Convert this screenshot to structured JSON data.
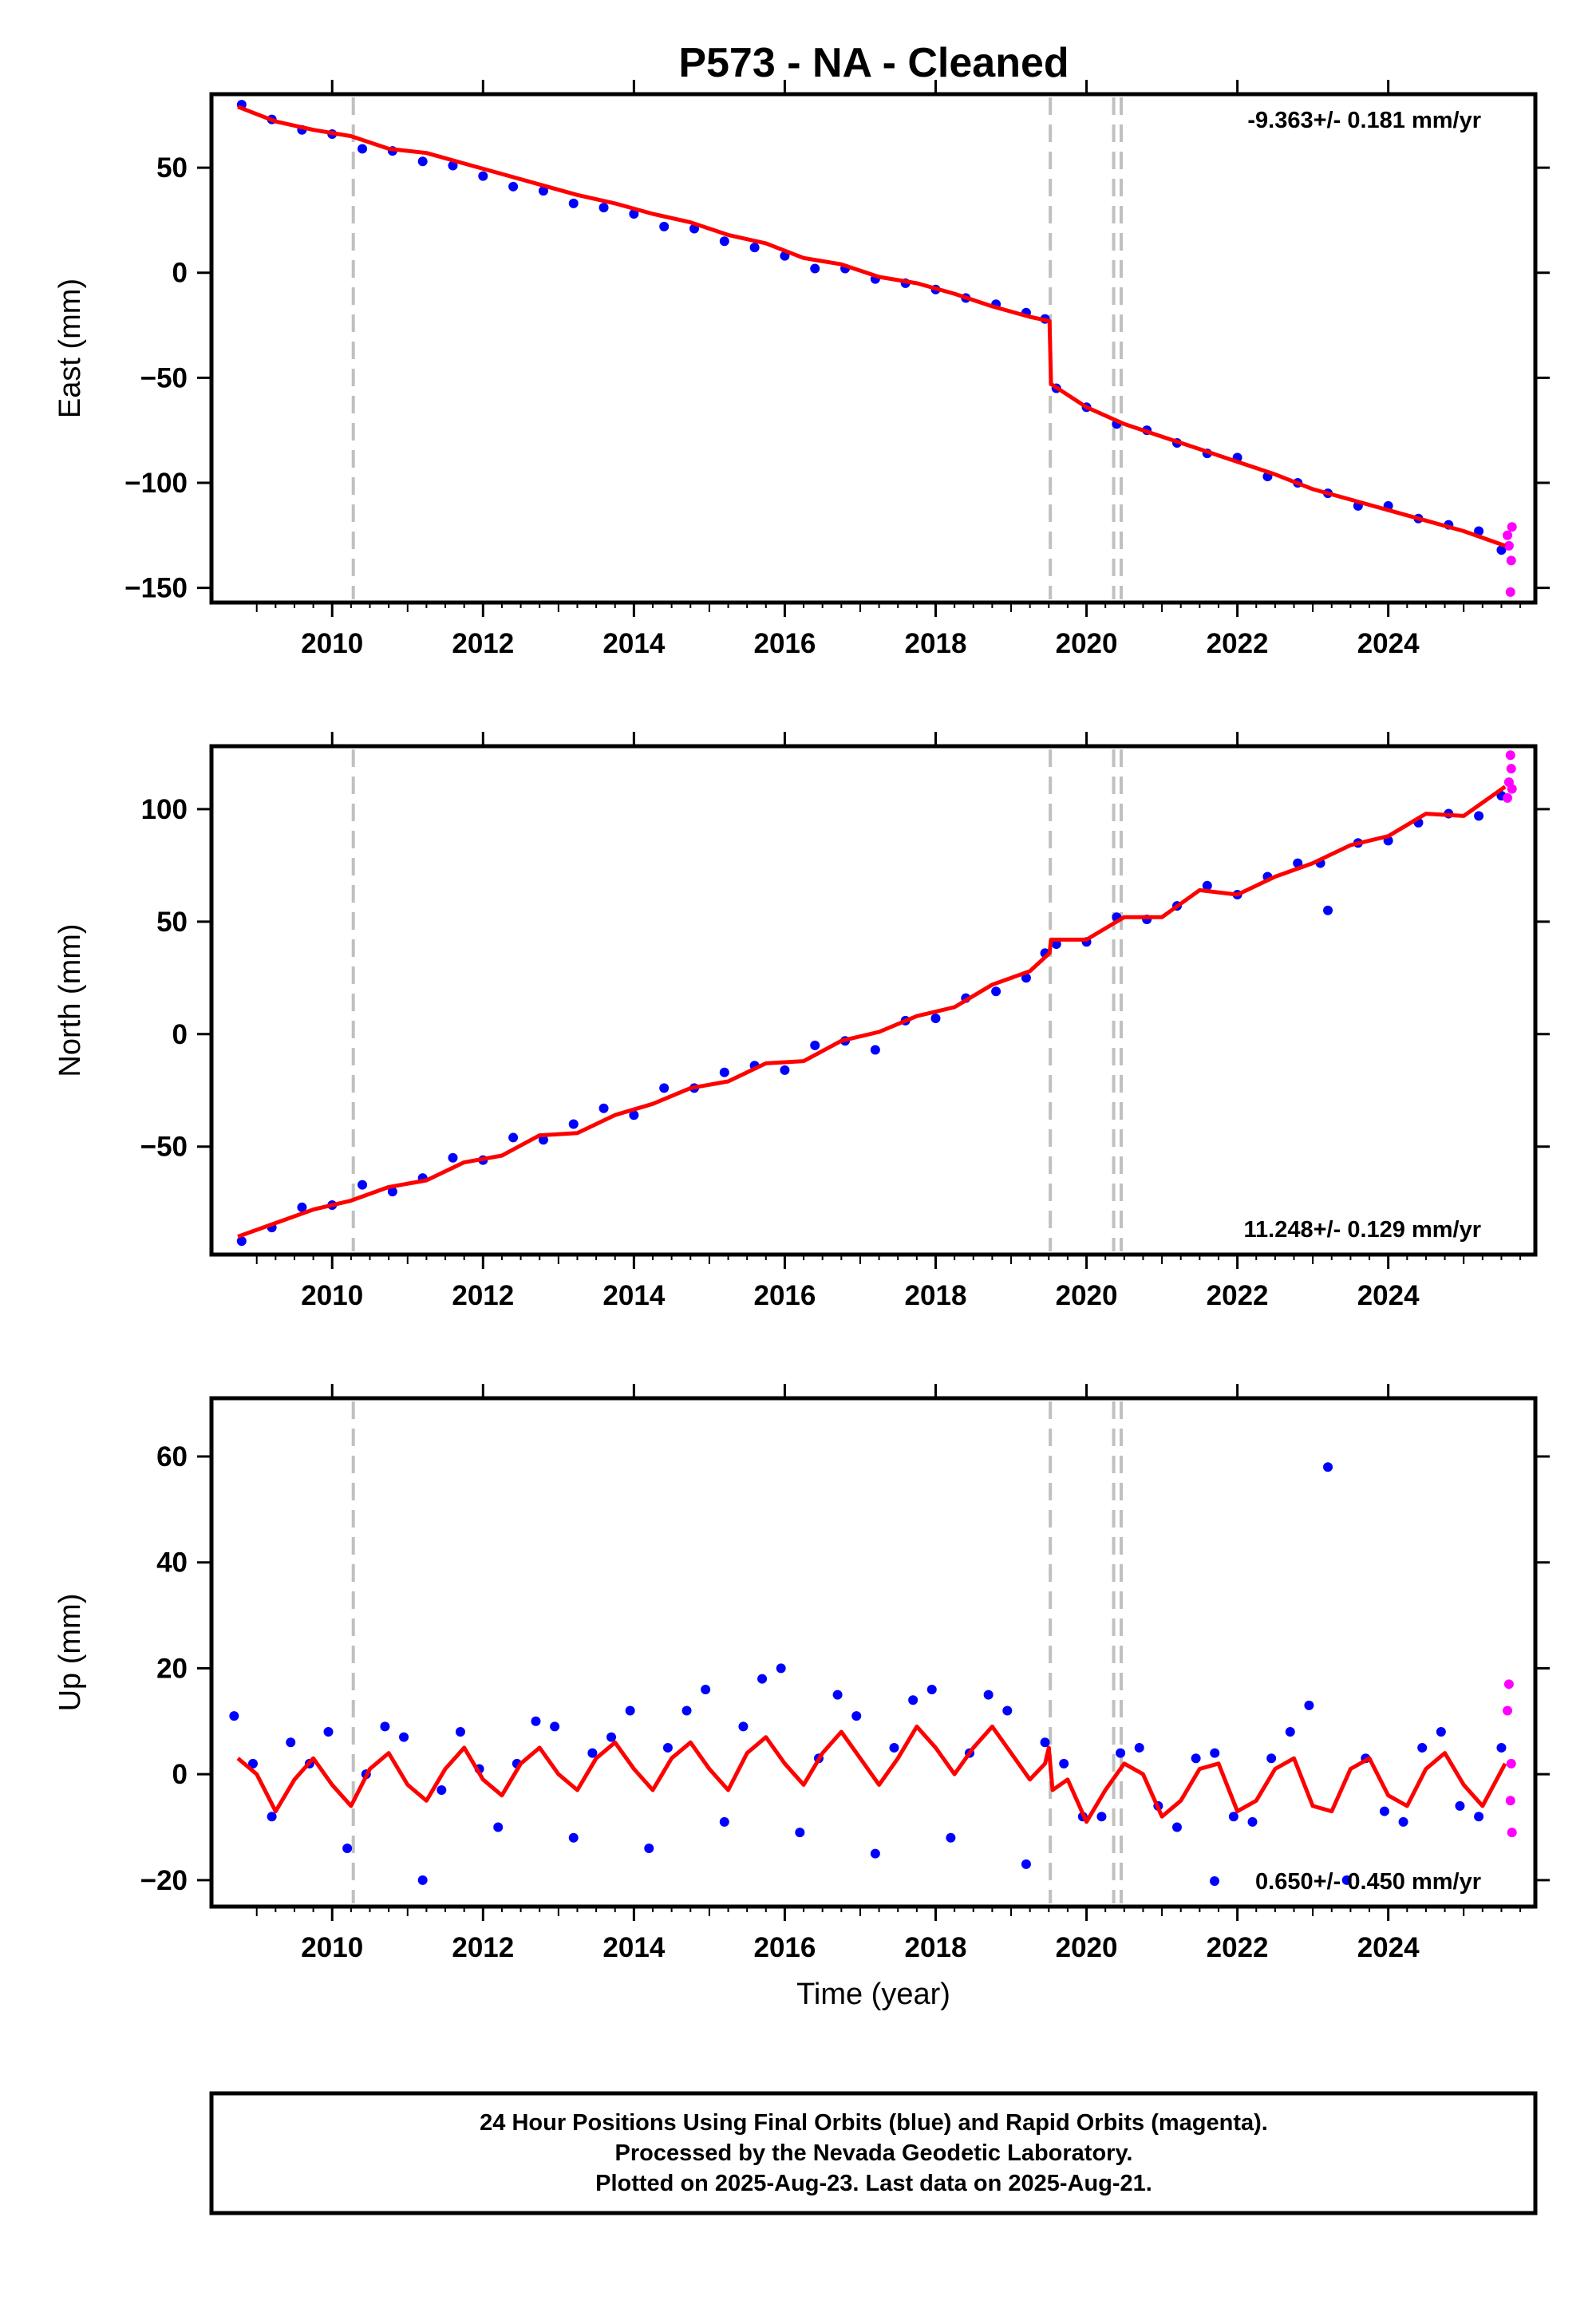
{
  "title": "P573  - NA - Cleaned",
  "colors": {
    "final_orbits": "#0000ff",
    "rapid_orbits": "#ff00ff",
    "model": "#ff0000",
    "event_lines": "#c0c0c0",
    "frame": "#000000"
  },
  "footer": {
    "line1": "24 Hour Positions Using Final Orbits (blue) and Rapid Orbits (magenta).",
    "line2": "Processed by the Nevada Geodetic Laboratory.",
    "line3": "Plotted on 2025-Aug-23. Last data on 2025-Aug-21."
  },
  "chart_data": [
    {
      "type": "scatter",
      "component": "east",
      "ylabel": "East (mm)",
      "xlabel": "",
      "xlim": [
        2008.4,
        2025.95
      ],
      "ylim": [
        -157,
        85
      ],
      "yticks": [
        50,
        0,
        -50,
        -100,
        -150
      ],
      "yticklabels": [
        "50",
        "0",
        "−50",
        "−100",
        "−150"
      ],
      "xticks": [
        2010,
        2012,
        2014,
        2016,
        2018,
        2020,
        2022,
        2024
      ],
      "xticklabels": [
        "2010",
        "2012",
        "2014",
        "2016",
        "2018",
        "2020",
        "2022",
        "2024"
      ],
      "rate_label": "-9.363+/- 0.181 mm/yr",
      "rate_position": "top-right",
      "event_lines_x": [
        2010.28,
        2019.52,
        2020.36,
        2020.46
      ],
      "model_line_x": [
        2008.75,
        2009.25,
        2009.75,
        2010.25,
        2010.75,
        2011.25,
        2011.75,
        2012.25,
        2012.75,
        2013.25,
        2013.75,
        2014.25,
        2014.75,
        2015.25,
        2015.75,
        2016.25,
        2016.75,
        2017.25,
        2017.75,
        2018.25,
        2018.75,
        2019.25,
        2019.51,
        2019.53,
        2020.0,
        2020.5,
        2021.0,
        2021.5,
        2022.0,
        2022.5,
        2023.0,
        2023.5,
        2024.0,
        2024.5,
        2025.0,
        2025.55
      ],
      "model_line_y": [
        79,
        72,
        68,
        65,
        59,
        57,
        52,
        47,
        42,
        37,
        33,
        28,
        24,
        18,
        14,
        7,
        4,
        -2,
        -5,
        -10,
        -16,
        -21,
        -23,
        -53,
        -64,
        -72,
        -78,
        -84,
        -90,
        -96,
        -103,
        -108,
        -113,
        -118,
        -123,
        -130
      ],
      "final_points_x": [
        2008.8,
        2009.2,
        2009.6,
        2010.0,
        2010.4,
        2010.8,
        2011.2,
        2011.6,
        2012.0,
        2012.4,
        2012.8,
        2013.2,
        2013.6,
        2014.0,
        2014.4,
        2014.8,
        2015.2,
        2015.6,
        2016.0,
        2016.4,
        2016.8,
        2017.2,
        2017.6,
        2018.0,
        2018.4,
        2018.8,
        2019.2,
        2019.45,
        2019.6,
        2020.0,
        2020.4,
        2020.8,
        2021.2,
        2021.6,
        2022.0,
        2022.4,
        2022.8,
        2023.2,
        2023.6,
        2024.0,
        2024.4,
        2024.8,
        2025.2,
        2025.5
      ],
      "final_points_y": [
        80,
        73,
        68,
        66,
        59,
        58,
        53,
        51,
        46,
        41,
        39,
        33,
        31,
        28,
        22,
        21,
        15,
        12,
        8,
        2,
        2,
        -3,
        -5,
        -8,
        -12,
        -15,
        -19,
        -22,
        -55,
        -64,
        -72,
        -75,
        -81,
        -86,
        -88,
        -97,
        -100,
        -105,
        -111,
        -111,
        -117,
        -120,
        -123,
        -132
      ],
      "rapid_points_x": [
        2025.58,
        2025.6,
        2025.62,
        2025.63,
        2025.64
      ],
      "rapid_points_y": [
        -125,
        -130,
        -152,
        -137,
        -121
      ]
    },
    {
      "type": "scatter",
      "component": "north",
      "ylabel": "North (mm)",
      "xlabel": "",
      "xlim": [
        2008.4,
        2025.95
      ],
      "ylim": [
        -98,
        128
      ],
      "yticks": [
        100,
        50,
        0,
        -50
      ],
      "yticklabels": [
        "100",
        "50",
        "0",
        "−50"
      ],
      "xticks": [
        2010,
        2012,
        2014,
        2016,
        2018,
        2020,
        2022,
        2024
      ],
      "xticklabels": [
        "2010",
        "2012",
        "2014",
        "2016",
        "2018",
        "2020",
        "2022",
        "2024"
      ],
      "rate_label": "11.248+/- 0.129 mm/yr",
      "rate_position": "bottom-right",
      "event_lines_x": [
        2010.28,
        2019.52,
        2020.36,
        2020.46
      ],
      "model_line_x": [
        2008.75,
        2009.25,
        2009.75,
        2010.25,
        2010.75,
        2011.25,
        2011.75,
        2012.25,
        2012.75,
        2013.25,
        2013.75,
        2014.25,
        2014.75,
        2015.25,
        2015.75,
        2016.25,
        2016.75,
        2017.25,
        2017.75,
        2018.25,
        2018.75,
        2019.25,
        2019.51,
        2019.53,
        2020.0,
        2020.5,
        2021.0,
        2021.5,
        2022.0,
        2022.5,
        2023.0,
        2023.5,
        2024.0,
        2024.5,
        2025.0,
        2025.55
      ],
      "model_line_y": [
        -90,
        -84,
        -78,
        -74,
        -68,
        -65,
        -57,
        -54,
        -45,
        -44,
        -36,
        -31,
        -24,
        -21,
        -13,
        -12,
        -3,
        1,
        8,
        12,
        22,
        28,
        36,
        42,
        42,
        52,
        52,
        64,
        62,
        70,
        76,
        84,
        88,
        98,
        97,
        110
      ],
      "final_points_x": [
        2008.8,
        2009.2,
        2009.6,
        2010.0,
        2010.4,
        2010.8,
        2011.2,
        2011.6,
        2012.0,
        2012.4,
        2012.8,
        2013.2,
        2013.6,
        2014.0,
        2014.4,
        2014.8,
        2015.2,
        2015.6,
        2016.0,
        2016.4,
        2016.8,
        2017.2,
        2017.6,
        2018.0,
        2018.4,
        2018.8,
        2019.2,
        2019.45,
        2019.6,
        2020.0,
        2020.4,
        2020.8,
        2021.2,
        2021.6,
        2022.0,
        2022.4,
        2022.8,
        2023.1,
        2023.2,
        2023.6,
        2024.0,
        2024.4,
        2024.8,
        2025.2,
        2025.5
      ],
      "final_points_y": [
        -92,
        -86,
        -77,
        -76,
        -67,
        -70,
        -64,
        -55,
        -56,
        -46,
        -47,
        -40,
        -33,
        -36,
        -24,
        -24,
        -17,
        -14,
        -16,
        -5,
        -3,
        -7,
        6,
        7,
        16,
        19,
        25,
        36,
        40,
        41,
        52,
        51,
        57,
        66,
        62,
        70,
        76,
        76,
        55,
        85,
        86,
        94,
        98,
        97,
        106
      ],
      "rapid_points_x": [
        2025.58,
        2025.6,
        2025.62,
        2025.63,
        2025.64
      ],
      "rapid_points_y": [
        105,
        112,
        124,
        118,
        109
      ]
    },
    {
      "type": "scatter",
      "component": "up",
      "ylabel": "Up (mm)",
      "xlabel": "Time (year)",
      "xlim": [
        2008.4,
        2025.95
      ],
      "ylim": [
        -25,
        71
      ],
      "yticks": [
        60,
        40,
        20,
        0,
        -20
      ],
      "yticklabels": [
        "60",
        "40",
        "20",
        "0",
        "−20"
      ],
      "xticks": [
        2010,
        2012,
        2014,
        2016,
        2018,
        2020,
        2022,
        2024
      ],
      "xticklabels": [
        "2010",
        "2012",
        "2014",
        "2016",
        "2018",
        "2020",
        "2022",
        "2024"
      ],
      "rate_label": "0.650+/- 0.450 mm/yr",
      "rate_position": "bottom-right",
      "event_lines_x": [
        2010.28,
        2019.52,
        2020.36,
        2020.46
      ],
      "model_line_x": [
        2008.75,
        2009.0,
        2009.25,
        2009.5,
        2009.75,
        2010.0,
        2010.25,
        2010.5,
        2010.75,
        2011.0,
        2011.25,
        2011.5,
        2011.75,
        2012.0,
        2012.25,
        2012.5,
        2012.75,
        2013.0,
        2013.25,
        2013.5,
        2013.75,
        2014.0,
        2014.25,
        2014.5,
        2014.75,
        2015.0,
        2015.25,
        2015.5,
        2015.75,
        2016.0,
        2016.25,
        2016.5,
        2016.75,
        2017.0,
        2017.25,
        2017.5,
        2017.75,
        2018.0,
        2018.25,
        2018.5,
        2018.75,
        2019.0,
        2019.25,
        2019.45,
        2019.5,
        2019.55,
        2019.75,
        2020.0,
        2020.25,
        2020.5,
        2020.75,
        2021.0,
        2021.25,
        2021.5,
        2021.75,
        2022.0,
        2022.25,
        2022.5,
        2022.75,
        2023.0,
        2023.25,
        2023.5,
        2023.75,
        2024.0,
        2024.25,
        2024.5,
        2024.75,
        2025.0,
        2025.25,
        2025.55
      ],
      "model_line_y": [
        3,
        0,
        -7,
        -1,
        3,
        -2,
        -6,
        1,
        4,
        -2,
        -5,
        1,
        5,
        -1,
        -4,
        2,
        5,
        0,
        -3,
        3,
        6,
        1,
        -3,
        3,
        6,
        1,
        -3,
        4,
        7,
        2,
        -2,
        4,
        8,
        3,
        -2,
        3,
        9,
        5,
        0,
        5,
        9,
        4,
        -1,
        2,
        5,
        -3,
        -1,
        -9,
        -3,
        2,
        0,
        -8,
        -5,
        1,
        2,
        -7,
        -5,
        1,
        3,
        -6,
        -7,
        1,
        3,
        -4,
        -6,
        1,
        4,
        -2,
        -6,
        2
      ],
      "final_points_x": [
        2008.7,
        2008.95,
        2009.2,
        2009.45,
        2009.7,
        2009.95,
        2010.2,
        2010.45,
        2010.7,
        2010.95,
        2011.2,
        2011.45,
        2011.7,
        2011.95,
        2012.2,
        2012.45,
        2012.7,
        2012.95,
        2013.2,
        2013.45,
        2013.7,
        2013.95,
        2014.2,
        2014.45,
        2014.7,
        2014.95,
        2015.2,
        2015.45,
        2015.7,
        2015.95,
        2016.2,
        2016.45,
        2016.7,
        2016.95,
        2017.2,
        2017.45,
        2017.7,
        2017.95,
        2018.2,
        2018.45,
        2018.7,
        2018.95,
        2019.2,
        2019.45,
        2019.7,
        2019.95,
        2020.2,
        2020.45,
        2020.7,
        2020.95,
        2021.2,
        2021.45,
        2021.7,
        2021.95,
        2022.2,
        2022.45,
        2022.7,
        2022.95,
        2023.2,
        2023.45,
        2023.7,
        2023.95,
        2024.2,
        2024.45,
        2024.7,
        2024.95,
        2025.2,
        2025.5
      ],
      "final_points_y": [
        11,
        2,
        -8,
        6,
        2,
        8,
        -14,
        0,
        9,
        7,
        -20,
        -3,
        8,
        1,
        -10,
        2,
        10,
        9,
        -12,
        4,
        7,
        12,
        -14,
        5,
        12,
        16,
        -9,
        9,
        18,
        20,
        -11,
        3,
        15,
        11,
        -15,
        5,
        14,
        16,
        -12,
        4,
        15,
        12,
        -17,
        6,
        2,
        -8,
        -8,
        4,
        5,
        -6,
        -10,
        3,
        4,
        -8,
        -9,
        3,
        8,
        13,
        58,
        -20,
        3,
        -7,
        -9,
        5,
        8,
        -6,
        -8,
        5
      ],
      "rapid_points_x": [
        2025.58,
        2025.6,
        2025.62,
        2025.63,
        2025.64
      ],
      "rapid_points_y": [
        12,
        17,
        -5,
        2,
        -11
      ]
    }
  ]
}
